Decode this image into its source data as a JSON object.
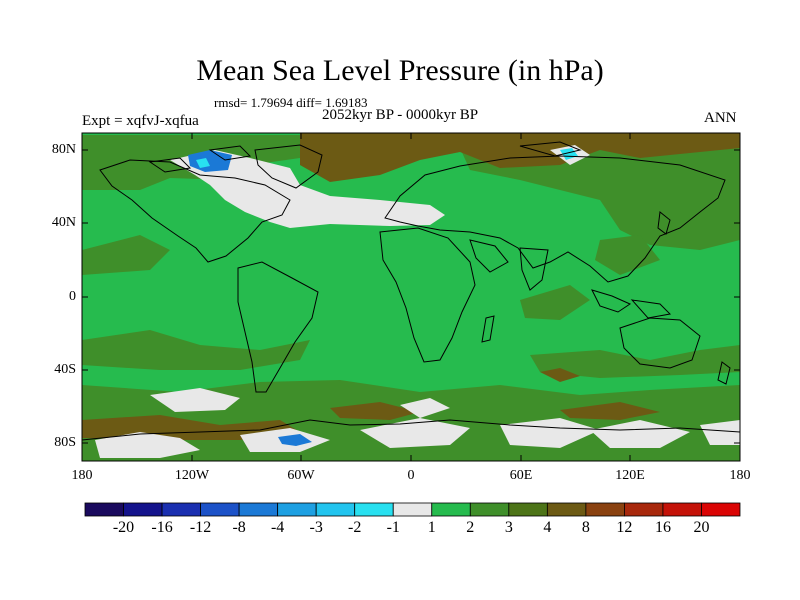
{
  "title": "Mean Sea Level Pressure (in hPa)",
  "stats": "rmsd= 1.79694 diff= 1.69183",
  "period": "2052kyr BP - 0000kyr BP",
  "experiment": "Expt = xqfvJ-xqfua",
  "season": "ANN",
  "lat_labels": [
    "80N",
    "40N",
    "0",
    "40S",
    "80S"
  ],
  "lon_labels": [
    "180",
    "120W",
    "60W",
    "0",
    "60E",
    "120E",
    "180"
  ],
  "colorbar": {
    "labels": [
      "-20",
      "-16",
      "-12",
      "-8",
      "-4",
      "-3",
      "-2",
      "-1",
      "1",
      "2",
      "3",
      "4",
      "8",
      "12",
      "16",
      "20"
    ],
    "colors": [
      "#1a0a5e",
      "#14138c",
      "#1a2fb0",
      "#1c52c8",
      "#1b79d6",
      "#1ea0e2",
      "#22c4ee",
      "#28e0f0",
      "#e8e8e8",
      "#26bb4e",
      "#3f8f2a",
      "#4d7418",
      "#6c5a14",
      "#8a4210",
      "#a8280c",
      "#c41208",
      "#da0404"
    ]
  },
  "legend_colors": {
    "background_field": "#26bb4e",
    "positive_3_4": "#3f8f2a",
    "positive_4_8": "#6c5a14",
    "near_zero": "#e8e8e8",
    "negative": "#1b79d6"
  }
}
